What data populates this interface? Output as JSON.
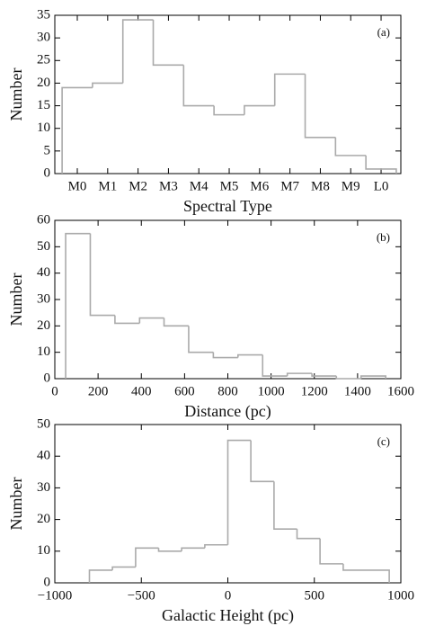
{
  "chart_data": [
    {
      "type": "histogram",
      "annotation": "(a)",
      "x_label": "Spectral Type",
      "y_label": "Number",
      "categories": [
        "M0",
        "M1",
        "M2",
        "M3",
        "M4",
        "M5",
        "M6",
        "M7",
        "M8",
        "M9",
        "L0"
      ],
      "values": [
        19,
        20,
        34,
        24,
        15,
        13,
        15,
        22,
        8,
        4,
        1
      ],
      "color": "#aaaaaa",
      "ylim": [
        0,
        35
      ],
      "yticks": [
        0,
        5,
        10,
        15,
        20,
        25,
        30,
        35
      ]
    },
    {
      "type": "histogram",
      "annotation": "(b)",
      "x_label": "Distance (pc)",
      "y_label": "Number",
      "bins": [
        50,
        164,
        278,
        392,
        505,
        619,
        733,
        847,
        961,
        1075,
        1189,
        1302,
        1416,
        1530
      ],
      "values": [
        55,
        24,
        21,
        23,
        20,
        10,
        8,
        9,
        1,
        2,
        1,
        0,
        1
      ],
      "color": "#aaaaaa",
      "xlim": [
        0,
        1600
      ],
      "xticks": [
        0,
        200,
        400,
        600,
        800,
        1000,
        1200,
        1400,
        1600
      ],
      "ylim": [
        0,
        60
      ],
      "yticks": [
        0,
        10,
        20,
        30,
        40,
        50,
        60
      ]
    },
    {
      "type": "histogram",
      "annotation": "(c)",
      "x_label": "Galactic Height (pc)",
      "y_label": "Number",
      "bins": [
        -800,
        -667,
        -533,
        -400,
        -267,
        -133,
        0,
        133,
        267,
        400,
        533,
        667,
        800,
        933
      ],
      "values": [
        4,
        5,
        11,
        10,
        11,
        12,
        45,
        32,
        17,
        14,
        6,
        4,
        4
      ],
      "color": "#aaaaaa",
      "xlim": [
        -1000,
        1000
      ],
      "xticks": [
        {
          "value": -1000,
          "label": "−1000"
        },
        {
          "value": -500,
          "label": "−500"
        },
        0,
        500,
        1000
      ],
      "ylim": [
        0,
        50
      ],
      "yticks": [
        0,
        10,
        20,
        30,
        40,
        50
      ]
    }
  ]
}
